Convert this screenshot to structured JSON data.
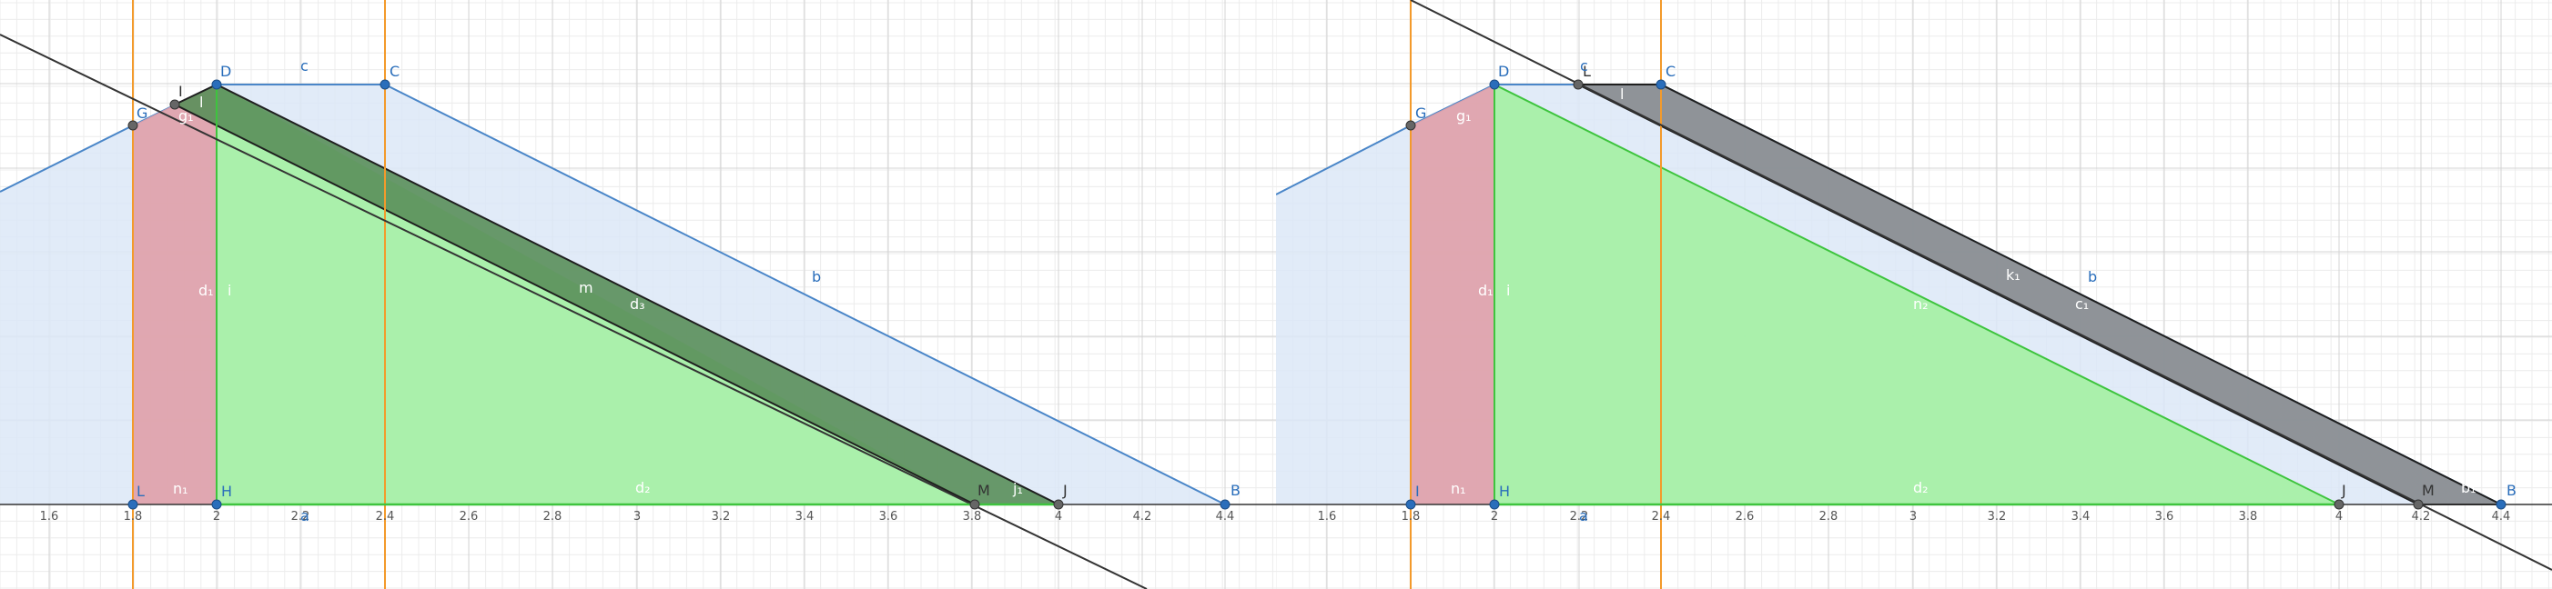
{
  "left": {
    "x_ticks": [
      "1.6",
      "1.8",
      "2",
      "2.2",
      "2.4",
      "2.6",
      "2.8",
      "3",
      "3.2",
      "3.4",
      "3.6",
      "3.8",
      "4",
      "4.2",
      "4.4"
    ],
    "points": [
      {
        "name": "G",
        "color": "#2a6ebb"
      },
      {
        "name": "D",
        "color": "#2a6ebb"
      },
      {
        "name": "C",
        "color": "#2a6ebb"
      },
      {
        "name": "I",
        "color": "#333333"
      },
      {
        "name": "L",
        "color": "#333333"
      },
      {
        "name": "H",
        "color": "#2a6ebb"
      },
      {
        "name": "M",
        "color": "#333333"
      },
      {
        "name": "J",
        "color": "#333333"
      },
      {
        "name": "B",
        "color": "#2a6ebb"
      }
    ],
    "labels": {
      "c": "c",
      "b": "b",
      "m": "m",
      "a": "a",
      "d1": "d₁",
      "i": "i",
      "g1": "g₁",
      "l": "l",
      "n1": "n₁",
      "d2": "d₂",
      "d3": "d₃",
      "j1": "j₁"
    }
  },
  "right": {
    "x_ticks": [
      "1.6",
      "1.8",
      "2",
      "2.2",
      "2.4",
      "2.6",
      "2.8",
      "3",
      "3.2",
      "3.4",
      "3.6",
      "3.8",
      "4",
      "4.2",
      "4.4"
    ],
    "points": [
      {
        "name": "G",
        "color": "#2a6ebb"
      },
      {
        "name": "D",
        "color": "#2a6ebb"
      },
      {
        "name": "L",
        "color": "#333333"
      },
      {
        "name": "C",
        "color": "#2a6ebb"
      },
      {
        "name": "I",
        "color": "#2a6ebb"
      },
      {
        "name": "H",
        "color": "#2a6ebb"
      },
      {
        "name": "J",
        "color": "#333333"
      },
      {
        "name": "M",
        "color": "#333333"
      },
      {
        "name": "B",
        "color": "#2a6ebb"
      }
    ],
    "labels": {
      "c": "c",
      "b": "b",
      "a": "a",
      "l": "l",
      "d1": "d₁",
      "i": "i",
      "g1": "g₁",
      "n1": "n₁",
      "n2": "n₂",
      "d2": "d₂",
      "k1": "k₁",
      "c1": "c₁",
      "b1": "b₁"
    }
  },
  "colors": {
    "blue_fill": "#dce8f7",
    "blue_line": "#4a86c8",
    "red_fill": "#e0a0a8",
    "green_fill": "#a6f0a6",
    "green_line": "#3ec43e",
    "dark_green_fill": "#5a8f5a",
    "gray_fill": "#8a8e92",
    "orange_line": "#f39a2b",
    "grid_minor": "#ececec",
    "grid_major": "#d4d4d4"
  }
}
